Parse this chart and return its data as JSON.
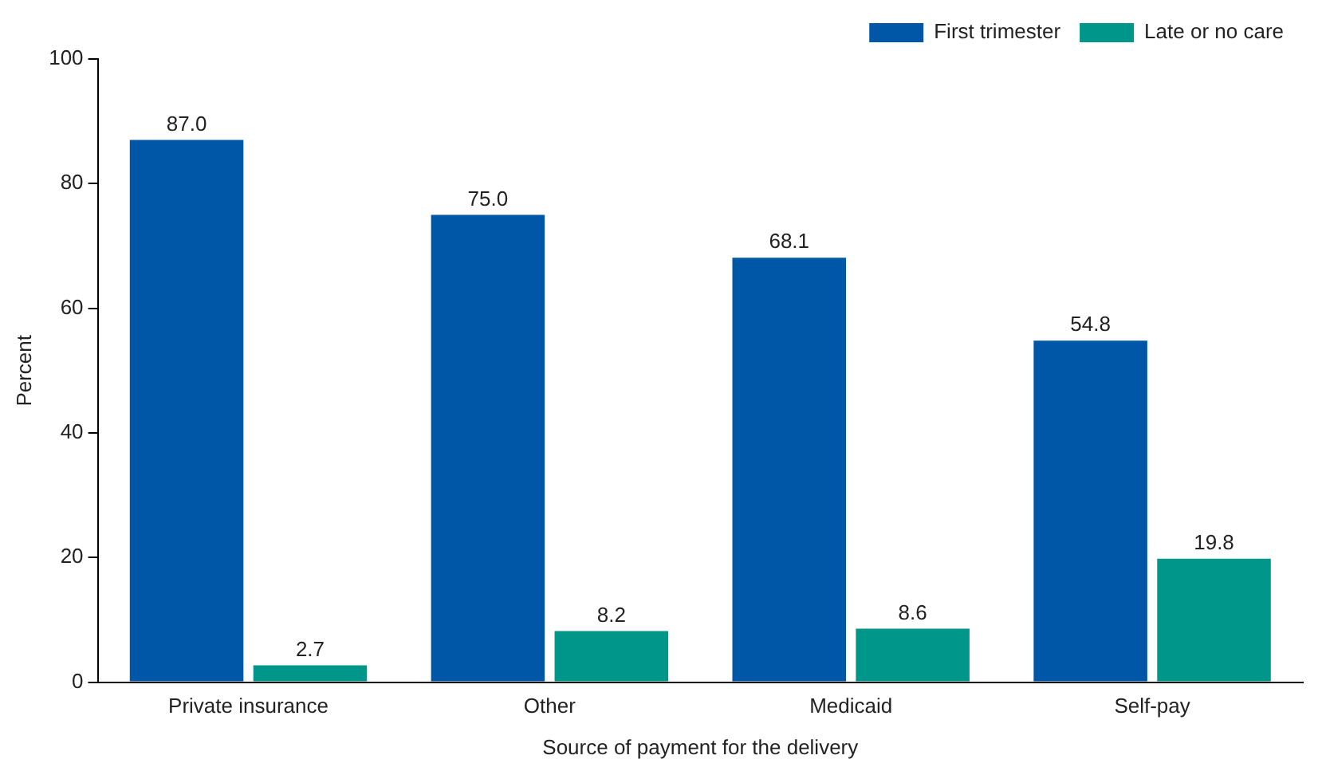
{
  "chart_data": {
    "type": "bar",
    "xlabel": "Source of payment for the delivery",
    "ylabel": "Percent",
    "categories": [
      "Private insurance",
      "Other",
      "Medicaid",
      "Self-pay"
    ],
    "series": [
      {
        "name": "First trimester",
        "color": "#0057a8",
        "values": [
          87.0,
          75.0,
          68.1,
          54.8
        ],
        "value_labels": [
          "87.0",
          "75.0",
          "68.1",
          "54.8"
        ]
      },
      {
        "name": "Late or no care",
        "color": "#00968a",
        "values": [
          2.7,
          8.2,
          8.6,
          19.8
        ],
        "value_labels": [
          "2.7",
          "8.2",
          "8.6",
          "19.8"
        ]
      }
    ],
    "ylim": [
      0,
      100
    ],
    "yticks": [
      0,
      20,
      40,
      60,
      80,
      100
    ],
    "grid": false,
    "legend": "top right"
  }
}
